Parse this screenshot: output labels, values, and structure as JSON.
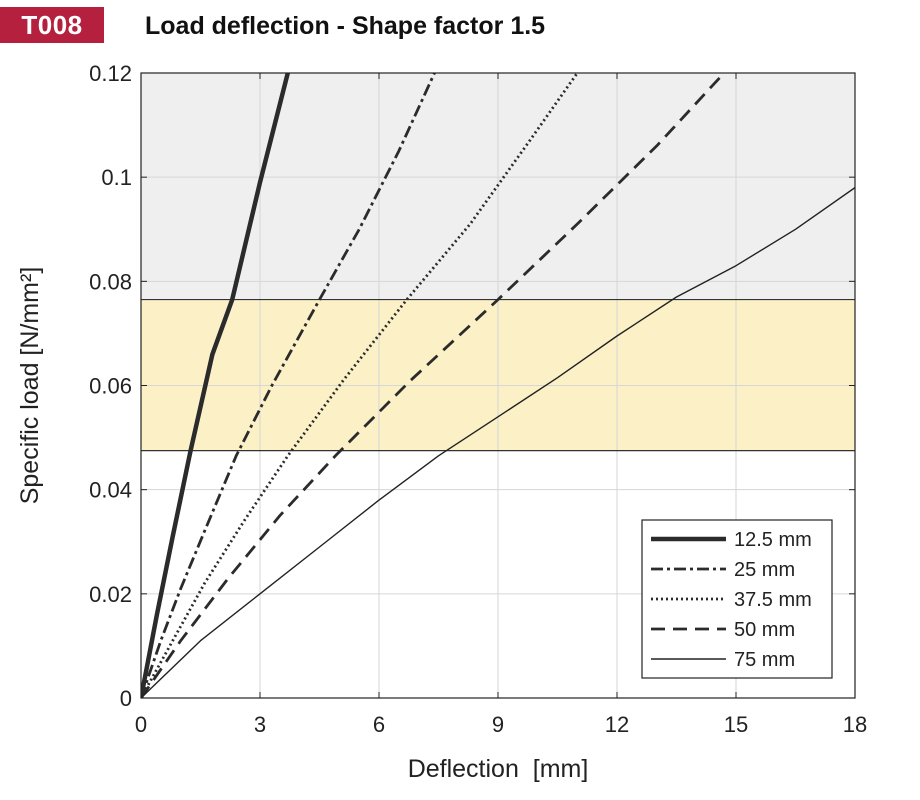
{
  "header": {
    "badge": "T008",
    "title": "Load deflection - Shape factor 1.5"
  },
  "colors": {
    "badge_bg": "#b5203f",
    "upper_band": "#efefef",
    "working_band": "#fbf0c6",
    "line": "#1f1f1f"
  },
  "chart_data": {
    "type": "line",
    "title": "Load deflection - Shape factor 1.5",
    "xlabel": "Deflection  [mm]",
    "ylabel": "Specific load [N/mm²]",
    "xlim": [
      0,
      18
    ],
    "ylim": [
      0,
      0.12
    ],
    "xticks": [
      0,
      3,
      6,
      9,
      12,
      15,
      18
    ],
    "xtick_labels": [
      "0",
      "3",
      "6",
      "9",
      "12",
      "15",
      "18"
    ],
    "yticks": [
      0,
      0.02,
      0.04,
      0.06,
      0.08,
      0.1,
      0.12
    ],
    "ytick_labels": [
      "0",
      "0.02",
      "0.04",
      "0.06",
      "0.08",
      "0.1",
      "0.12"
    ],
    "grid": true,
    "legend_position": "bottom-right",
    "bands": [
      {
        "name": "working-range",
        "y0": 0.0475,
        "y1": 0.0765,
        "color": "#fbf0c6"
      },
      {
        "name": "overload-range",
        "y0": 0.0765,
        "y1": 0.12,
        "color": "#efefef"
      }
    ],
    "series": [
      {
        "name": "12.5 mm",
        "style": "solid-thick",
        "x": [
          0,
          0.4,
          0.8,
          1.25,
          1.8,
          2.3,
          3.0,
          3.7
        ],
        "y": [
          0,
          0.016,
          0.031,
          0.0475,
          0.066,
          0.0765,
          0.099,
          0.12
        ]
      },
      {
        "name": "25 mm",
        "style": "dash-dot",
        "x": [
          0,
          0.5,
          1.0,
          1.6,
          2.4,
          3.3,
          4.5,
          5.5,
          6.5,
          7.4
        ],
        "y": [
          0,
          0.011,
          0.021,
          0.032,
          0.0465,
          0.06,
          0.0765,
          0.09,
          0.105,
          0.12
        ]
      },
      {
        "name": "37.5 mm",
        "style": "dotted",
        "x": [
          0,
          0.8,
          1.6,
          2.6,
          3.7,
          5.1,
          6.7,
          8.3,
          9.8,
          11.0
        ],
        "y": [
          0,
          0.011,
          0.022,
          0.034,
          0.0465,
          0.061,
          0.0765,
          0.091,
          0.107,
          0.12
        ]
      },
      {
        "name": "50 mm",
        "style": "dashed",
        "x": [
          0,
          1.0,
          2.2,
          3.5,
          4.9,
          6.8,
          9.0,
          11.0,
          13.0,
          14.7
        ],
        "y": [
          0,
          0.011,
          0.023,
          0.035,
          0.0465,
          0.061,
          0.0765,
          0.091,
          0.106,
          0.12
        ]
      },
      {
        "name": "75 mm",
        "style": "solid-thin",
        "x": [
          0,
          1.5,
          3.0,
          4.5,
          6.0,
          7.5,
          9.0,
          10.5,
          12.0,
          13.5,
          15.0,
          16.5,
          18.0
        ],
        "y": [
          0,
          0.011,
          0.02,
          0.029,
          0.038,
          0.0465,
          0.054,
          0.0615,
          0.0695,
          0.077,
          0.083,
          0.09,
          0.098
        ]
      }
    ]
  }
}
